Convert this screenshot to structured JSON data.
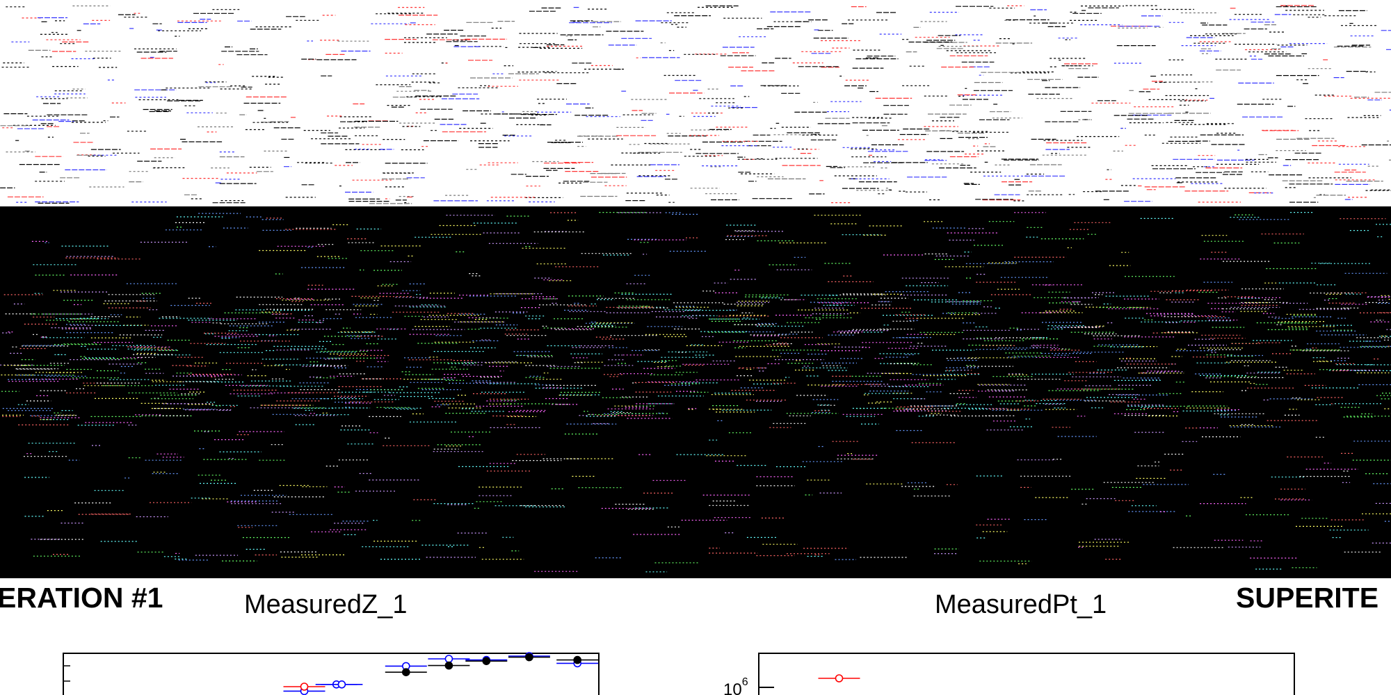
{
  "headings": {
    "left": "ERATION #1",
    "right": "SUPERITE"
  },
  "chart_data": [
    {
      "type": "scatter",
      "title": "MeasuredZ_1",
      "xlabel": "",
      "ylabel": "",
      "series": [
        {
          "color": "#0000ff",
          "marker": "open-circle",
          "x": [
            0.45,
            0.51,
            0.52,
            0.64,
            0.72,
            0.79,
            0.87,
            0.96
          ],
          "y": [
            0.32,
            0.44,
            0.44,
            0.77,
            0.9,
            0.88,
            0.95,
            0.82
          ]
        },
        {
          "color": "#000000",
          "marker": "filled-circle",
          "x": [
            0.64,
            0.72,
            0.79,
            0.87,
            0.96
          ],
          "y": [
            0.66,
            0.78,
            0.86,
            0.93,
            0.88
          ]
        },
        {
          "color": "#ff0000",
          "marker": "open-circle",
          "x": [
            0.45
          ],
          "y": [
            0.4
          ]
        }
      ],
      "xlim": [
        0,
        1
      ],
      "ylim": [
        0,
        1
      ]
    },
    {
      "type": "scatter",
      "title": "MeasuredPt_1",
      "xlabel": "",
      "ylabel": "",
      "y_tick_label": "10",
      "y_tick_exponent": "6",
      "series": [
        {
          "color": "#ff0000",
          "marker": "open-circle",
          "x": [
            0.15
          ],
          "y": [
            0.55
          ]
        }
      ],
      "xlim": [
        0,
        1
      ],
      "ylim": [
        0,
        1
      ]
    }
  ],
  "colors": {
    "background": "#ffffff",
    "band": "#000000",
    "blue": "#0000ff",
    "red": "#ff0000",
    "black": "#000000"
  }
}
